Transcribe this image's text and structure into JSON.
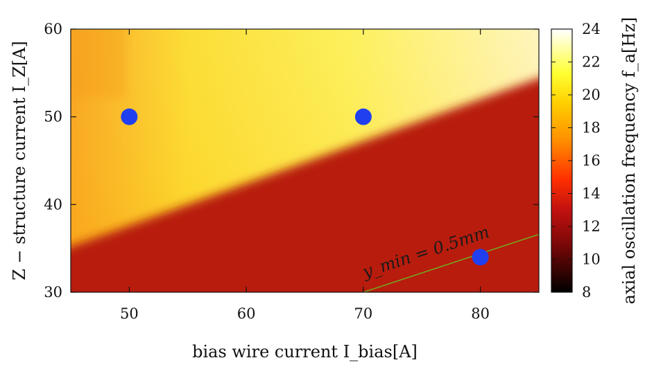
{
  "chart_data": {
    "type": "heatmap",
    "title": "",
    "xlabel": "bias wire current I_bias[A]",
    "ylabel": "Z − structure current I_Z[A]",
    "colorbar_label": "axial oscillation frequency f_a[Hz]",
    "xlim": [
      45,
      85
    ],
    "ylim": [
      30,
      60
    ],
    "zlim": [
      8,
      24
    ],
    "x_ticks": [
      50,
      60,
      70,
      80
    ],
    "y_ticks": [
      30,
      40,
      50,
      60
    ],
    "colorbar_ticks": [
      8,
      10,
      12,
      14,
      16,
      18,
      20,
      22,
      24
    ],
    "colormap": [
      "#000000",
      "#c01010",
      "#ff3000",
      "#ff9000",
      "#ffd000",
      "#ffff30",
      "#ffffff"
    ],
    "boundary": {
      "label": "y_min = 0.5mm",
      "region_value": 11.5,
      "region_color": "#b81c10",
      "edge_points": [
        [
          45,
          35.2
        ],
        [
          85,
          54.4
        ]
      ],
      "contour_points": [
        [
          70,
          30
        ],
        [
          85,
          36.6
        ]
      ],
      "contour_color": "#6ab820"
    },
    "points": [
      {
        "x": 50,
        "y": 50
      },
      {
        "x": 70,
        "y": 50
      },
      {
        "x": 80,
        "y": 34
      }
    ],
    "point_color": "#2040f0"
  }
}
